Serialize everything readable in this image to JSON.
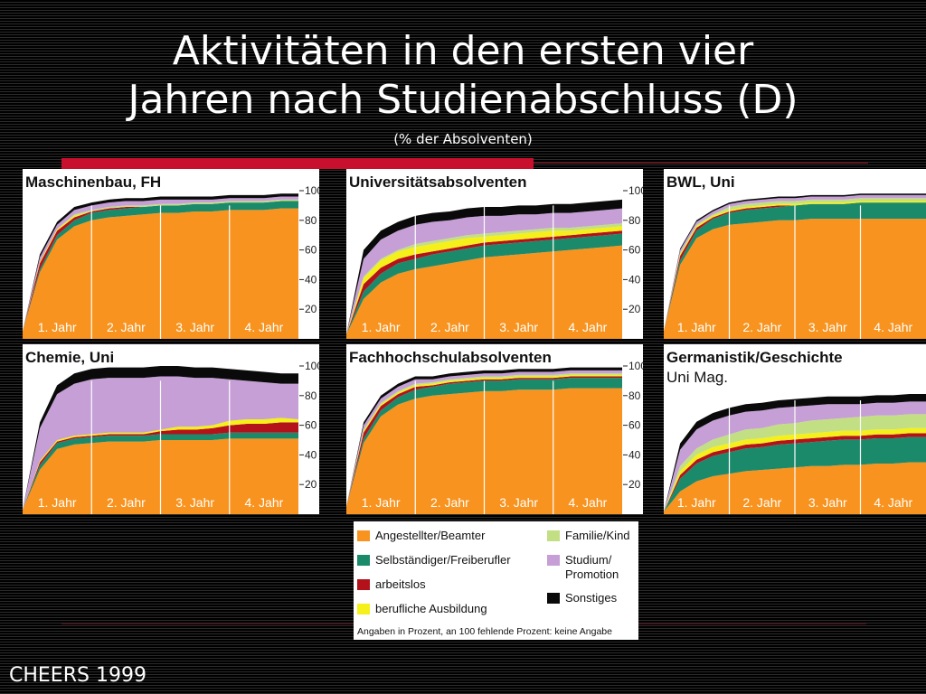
{
  "slide": {
    "title_line1": "Aktivitäten in den ersten vier",
    "title_line2": "Jahren nach Studienabschluss (D)",
    "subtitle": "(% der Absolventen)",
    "footer": "CHEERS 1999"
  },
  "colors": {
    "Angestellter/Beamter": "#f7931e",
    "Selbständiger/Freiberufler": "#1b8a6b",
    "arbeitslos": "#b3121b",
    "berufliche Ausbildung": "#f5ef1a",
    "Familie/Kind": "#c3df84",
    "Studium/Promotion": "#c59fd6",
    "Sonstiges": "#0a0a0a"
  },
  "legend": {
    "items": [
      {
        "label": "Angestellter/Beamter",
        "color": "#f7931e"
      },
      {
        "label": "Selbständiger/Freiberufler",
        "color": "#1b8a6b"
      },
      {
        "label": "arbeitslos",
        "color": "#b3121b"
      },
      {
        "label": "berufliche Ausbildung",
        "color": "#f5ef1a"
      },
      {
        "label": "Familie/Kind",
        "color": "#c3df84"
      },
      {
        "label": "Studium/\nPromotion",
        "color": "#c59fd6"
      },
      {
        "label": "Sonstiges",
        "color": "#0a0a0a"
      }
    ],
    "note": "Angaben in Prozent, an 100 fehlende Prozent: keine Angabe"
  },
  "chart_data": [
    {
      "type": "area",
      "stacked": true,
      "title": "Maschinenbau",
      "subtitle": ", FH",
      "x": [
        0,
        1,
        2,
        3,
        4,
        5,
        6,
        7,
        8,
        9,
        10,
        11,
        12,
        13,
        14,
        15,
        16
      ],
      "x_labels": [
        "1. Jahr",
        "2. Jahr",
        "3. Jahr",
        "4. Jahr"
      ],
      "y_ticks": [
        20,
        40,
        60,
        80,
        100
      ],
      "ylim": [
        0,
        100
      ],
      "series": [
        {
          "name": "Angestellter/Beamter",
          "values": [
            5,
            45,
            67,
            76,
            80,
            82,
            83,
            84,
            85,
            85,
            86,
            86,
            87,
            87,
            87,
            88,
            88
          ]
        },
        {
          "name": "Selbständiger/Freiberufler",
          "values": [
            0,
            2,
            3,
            4,
            5,
            5,
            5,
            5,
            5,
            5,
            5,
            5,
            5,
            5,
            5,
            5,
            5
          ]
        },
        {
          "name": "arbeitslos",
          "values": [
            0,
            4,
            3,
            2,
            1,
            1,
            1,
            0,
            0,
            0,
            0,
            0,
            0,
            0,
            0,
            0,
            0
          ]
        },
        {
          "name": "berufliche Ausbildung",
          "values": [
            0,
            1,
            1,
            1,
            0,
            0,
            0,
            0,
            0,
            0,
            0,
            0,
            0,
            0,
            0,
            0,
            0
          ]
        },
        {
          "name": "Familie/Kind",
          "values": [
            0,
            0,
            0,
            1,
            1,
            1,
            1,
            1,
            1,
            1,
            1,
            1,
            1,
            1,
            1,
            1,
            1
          ]
        },
        {
          "name": "Studium/Promotion",
          "values": [
            0,
            3,
            3,
            3,
            3,
            3,
            3,
            3,
            3,
            3,
            2,
            2,
            2,
            2,
            2,
            2,
            2
          ]
        },
        {
          "name": "Sonstiges",
          "values": [
            0,
            2,
            2,
            2,
            2,
            2,
            2,
            2,
            2,
            2,
            2,
            2,
            2,
            2,
            2,
            2,
            2
          ]
        }
      ]
    },
    {
      "type": "area",
      "stacked": true,
      "title": "Universitätsabsolventen",
      "subtitle": "",
      "x": [
        0,
        1,
        2,
        3,
        4,
        5,
        6,
        7,
        8,
        9,
        10,
        11,
        12,
        13,
        14,
        15,
        16
      ],
      "x_labels": [
        "1. Jahr",
        "2. Jahr",
        "3. Jahr",
        "4. Jahr"
      ],
      "y_ticks": [
        20,
        40,
        60,
        80,
        100
      ],
      "ylim": [
        0,
        100
      ],
      "series": [
        {
          "name": "Angestellter/Beamter",
          "values": [
            3,
            27,
            38,
            44,
            47,
            49,
            51,
            53,
            55,
            56,
            57,
            58,
            59,
            60,
            61,
            62,
            63
          ]
        },
        {
          "name": "Selbständiger/Freiberufler",
          "values": [
            0,
            5,
            6,
            7,
            7,
            8,
            8,
            8,
            8,
            8,
            8,
            8,
            8,
            8,
            8,
            8,
            8
          ]
        },
        {
          "name": "arbeitslos",
          "values": [
            0,
            5,
            4,
            3,
            3,
            2,
            2,
            2,
            2,
            2,
            2,
            2,
            2,
            2,
            2,
            2,
            2
          ]
        },
        {
          "name": "berufliche Ausbildung",
          "values": [
            0,
            4,
            5,
            5,
            5,
            5,
            5,
            5,
            4,
            4,
            4,
            4,
            4,
            3,
            3,
            3,
            3
          ]
        },
        {
          "name": "Familie/Kind",
          "values": [
            0,
            1,
            1,
            1,
            2,
            2,
            2,
            2,
            2,
            2,
            2,
            2,
            2,
            2,
            2,
            2,
            2
          ]
        },
        {
          "name": "Studium/Promotion",
          "values": [
            0,
            12,
            13,
            13,
            13,
            13,
            12,
            12,
            12,
            11,
            11,
            10,
            10,
            10,
            10,
            10,
            10
          ]
        },
        {
          "name": "Sonstiges",
          "values": [
            0,
            6,
            6,
            6,
            6,
            6,
            6,
            6,
            6,
            6,
            6,
            6,
            6,
            6,
            6,
            6,
            6
          ]
        }
      ]
    },
    {
      "type": "area",
      "stacked": true,
      "title": "BWL",
      "subtitle": ", Uni",
      "x": [
        0,
        1,
        2,
        3,
        4,
        5,
        6,
        7,
        8,
        9,
        10,
        11,
        12,
        13,
        14,
        15,
        16
      ],
      "x_labels": [
        "1. Jahr",
        "2. Jahr",
        "3. Jahr",
        "4. Jahr"
      ],
      "y_ticks": [],
      "ylim": [
        0,
        100
      ],
      "series": [
        {
          "name": "Angestellter/Beamter",
          "values": [
            5,
            50,
            68,
            74,
            77,
            78,
            79,
            80,
            80,
            81,
            81,
            81,
            81,
            81,
            81,
            81,
            81
          ]
        },
        {
          "name": "Selbständiger/Freiberufler",
          "values": [
            0,
            3,
            5,
            7,
            8,
            9,
            9,
            9,
            10,
            10,
            10,
            10,
            11,
            11,
            11,
            11,
            11
          ]
        },
        {
          "name": "arbeitslos",
          "values": [
            0,
            3,
            2,
            1,
            1,
            1,
            1,
            1,
            0,
            0,
            0,
            0,
            0,
            0,
            0,
            0,
            0
          ]
        },
        {
          "name": "berufliche Ausbildung",
          "values": [
            0,
            1,
            1,
            1,
            1,
            1,
            1,
            1,
            1,
            1,
            1,
            1,
            1,
            1,
            1,
            1,
            1
          ]
        },
        {
          "name": "Familie/Kind",
          "values": [
            0,
            1,
            1,
            1,
            2,
            2,
            2,
            2,
            2,
            2,
            2,
            2,
            2,
            2,
            2,
            2,
            2
          ]
        },
        {
          "name": "Studium/Promotion",
          "values": [
            0,
            2,
            2,
            2,
            2,
            2,
            2,
            2,
            2,
            2,
            2,
            2,
            2,
            2,
            2,
            2,
            2
          ]
        },
        {
          "name": "Sonstiges",
          "values": [
            0,
            1,
            1,
            1,
            1,
            1,
            1,
            1,
            1,
            1,
            1,
            1,
            1,
            1,
            1,
            1,
            1
          ]
        }
      ]
    },
    {
      "type": "area",
      "stacked": true,
      "title": "Chemie",
      "subtitle": ", Uni",
      "x": [
        0,
        1,
        2,
        3,
        4,
        5,
        6,
        7,
        8,
        9,
        10,
        11,
        12,
        13,
        14,
        15,
        16
      ],
      "x_labels": [
        "1. Jahr",
        "2. Jahr",
        "3. Jahr",
        "4. Jahr"
      ],
      "y_ticks": [
        20,
        40,
        60,
        80,
        100
      ],
      "ylim": [
        0,
        100
      ],
      "series": [
        {
          "name": "Angestellter/Beamter",
          "values": [
            3,
            30,
            44,
            47,
            48,
            49,
            49,
            49,
            50,
            50,
            50,
            50,
            51,
            51,
            51,
            51,
            51
          ]
        },
        {
          "name": "Selbständiger/Freiberufler",
          "values": [
            0,
            3,
            4,
            4,
            4,
            4,
            4,
            4,
            4,
            4,
            4,
            4,
            4,
            4,
            4,
            4,
            4
          ]
        },
        {
          "name": "arbeitslos",
          "values": [
            0,
            2,
            1,
            1,
            1,
            1,
            1,
            1,
            2,
            3,
            3,
            4,
            5,
            6,
            6,
            7,
            7
          ]
        },
        {
          "name": "berufliche Ausbildung",
          "values": [
            0,
            1,
            1,
            1,
            1,
            1,
            1,
            1,
            1,
            2,
            2,
            2,
            3,
            3,
            3,
            3,
            2
          ]
        },
        {
          "name": "Familie/Kind",
          "values": [
            0,
            0,
            0,
            0,
            0,
            0,
            0,
            0,
            0,
            0,
            0,
            0,
            0,
            0,
            0,
            0,
            0
          ]
        },
        {
          "name": "Studium/Promotion",
          "values": [
            0,
            22,
            31,
            35,
            37,
            37,
            37,
            37,
            36,
            34,
            33,
            32,
            28,
            26,
            25,
            23,
            24
          ]
        },
        {
          "name": "Sonstiges",
          "values": [
            0,
            4,
            6,
            7,
            7,
            7,
            7,
            7,
            7,
            7,
            7,
            7,
            7,
            7,
            7,
            7,
            7
          ]
        }
      ]
    },
    {
      "type": "area",
      "stacked": true,
      "title": "Fachhochschulabsolventen",
      "subtitle": "",
      "x": [
        0,
        1,
        2,
        3,
        4,
        5,
        6,
        7,
        8,
        9,
        10,
        11,
        12,
        13,
        14,
        15,
        16
      ],
      "x_labels": [
        "1. Jahr",
        "2. Jahr",
        "3. Jahr",
        "4. Jahr"
      ],
      "y_ticks": [
        20,
        40,
        60,
        80,
        100
      ],
      "ylim": [
        0,
        100
      ],
      "series": [
        {
          "name": "Angestellter/Beamter",
          "values": [
            5,
            48,
            66,
            74,
            78,
            80,
            81,
            82,
            83,
            83,
            84,
            84,
            84,
            85,
            85,
            85,
            85
          ]
        },
        {
          "name": "Selbständiger/Freiberufler",
          "values": [
            0,
            3,
            4,
            5,
            6,
            6,
            7,
            7,
            7,
            7,
            7,
            7,
            7,
            7,
            7,
            7,
            7
          ]
        },
        {
          "name": "arbeitslos",
          "values": [
            0,
            4,
            3,
            2,
            2,
            1,
            1,
            1,
            1,
            1,
            1,
            1,
            1,
            1,
            1,
            1,
            1
          ]
        },
        {
          "name": "berufliche Ausbildung",
          "values": [
            0,
            1,
            1,
            1,
            1,
            1,
            1,
            1,
            1,
            1,
            1,
            1,
            1,
            1,
            1,
            1,
            1
          ]
        },
        {
          "name": "Familie/Kind",
          "values": [
            0,
            1,
            1,
            1,
            1,
            1,
            1,
            1,
            1,
            1,
            1,
            1,
            1,
            1,
            1,
            1,
            1
          ]
        },
        {
          "name": "Studium/Promotion",
          "values": [
            0,
            3,
            3,
            3,
            3,
            2,
            2,
            2,
            2,
            2,
            2,
            2,
            2,
            2,
            2,
            2,
            2
          ]
        },
        {
          "name": "Sonstiges",
          "values": [
            0,
            2,
            2,
            2,
            2,
            2,
            2,
            2,
            2,
            2,
            2,
            2,
            2,
            2,
            2,
            2,
            2
          ]
        }
      ]
    },
    {
      "type": "area",
      "stacked": true,
      "title": "Germanistik/Geschichte",
      "subtitle": "Uni Mag.",
      "x": [
        0,
        1,
        2,
        3,
        4,
        5,
        6,
        7,
        8,
        9,
        10,
        11,
        12,
        13,
        14,
        15,
        16
      ],
      "x_labels": [
        "1. Jahr",
        "2. Jahr",
        "3. Jahr",
        "4. Jahr"
      ],
      "y_ticks": [],
      "ylim": [
        0,
        100
      ],
      "series": [
        {
          "name": "Angestellter/Beamter",
          "values": [
            2,
            18,
            26,
            30,
            32,
            34,
            35,
            36,
            37,
            38,
            38,
            39,
            39,
            40,
            40,
            41,
            41
          ]
        },
        {
          "name": "Selbständiger/Freiberufler",
          "values": [
            0,
            10,
            14,
            16,
            17,
            18,
            18,
            19,
            19,
            19,
            20,
            20,
            20,
            20,
            20,
            20,
            20
          ]
        },
        {
          "name": "arbeitslos",
          "values": [
            0,
            3,
            3,
            3,
            3,
            3,
            3,
            3,
            3,
            3,
            3,
            3,
            3,
            3,
            3,
            3,
            3
          ]
        },
        {
          "name": "berufliche Ausbildung",
          "values": [
            0,
            3,
            4,
            4,
            4,
            4,
            4,
            4,
            4,
            4,
            4,
            4,
            4,
            4,
            4,
            4,
            4
          ]
        },
        {
          "name": "Familie/Kind",
          "values": [
            0,
            4,
            5,
            6,
            7,
            8,
            8,
            9,
            9,
            10,
            10,
            10,
            11,
            11,
            11,
            11,
            11
          ]
        },
        {
          "name": "Studium/Promotion",
          "values": [
            0,
            13,
            15,
            15,
            15,
            14,
            14,
            13,
            13,
            12,
            12,
            11,
            10,
            10,
            10,
            10,
            10
          ]
        },
        {
          "name": "Sonstiges",
          "values": [
            0,
            5,
            6,
            6,
            6,
            6,
            6,
            6,
            6,
            6,
            6,
            6,
            6,
            6,
            6,
            6,
            6
          ]
        }
      ]
    }
  ]
}
